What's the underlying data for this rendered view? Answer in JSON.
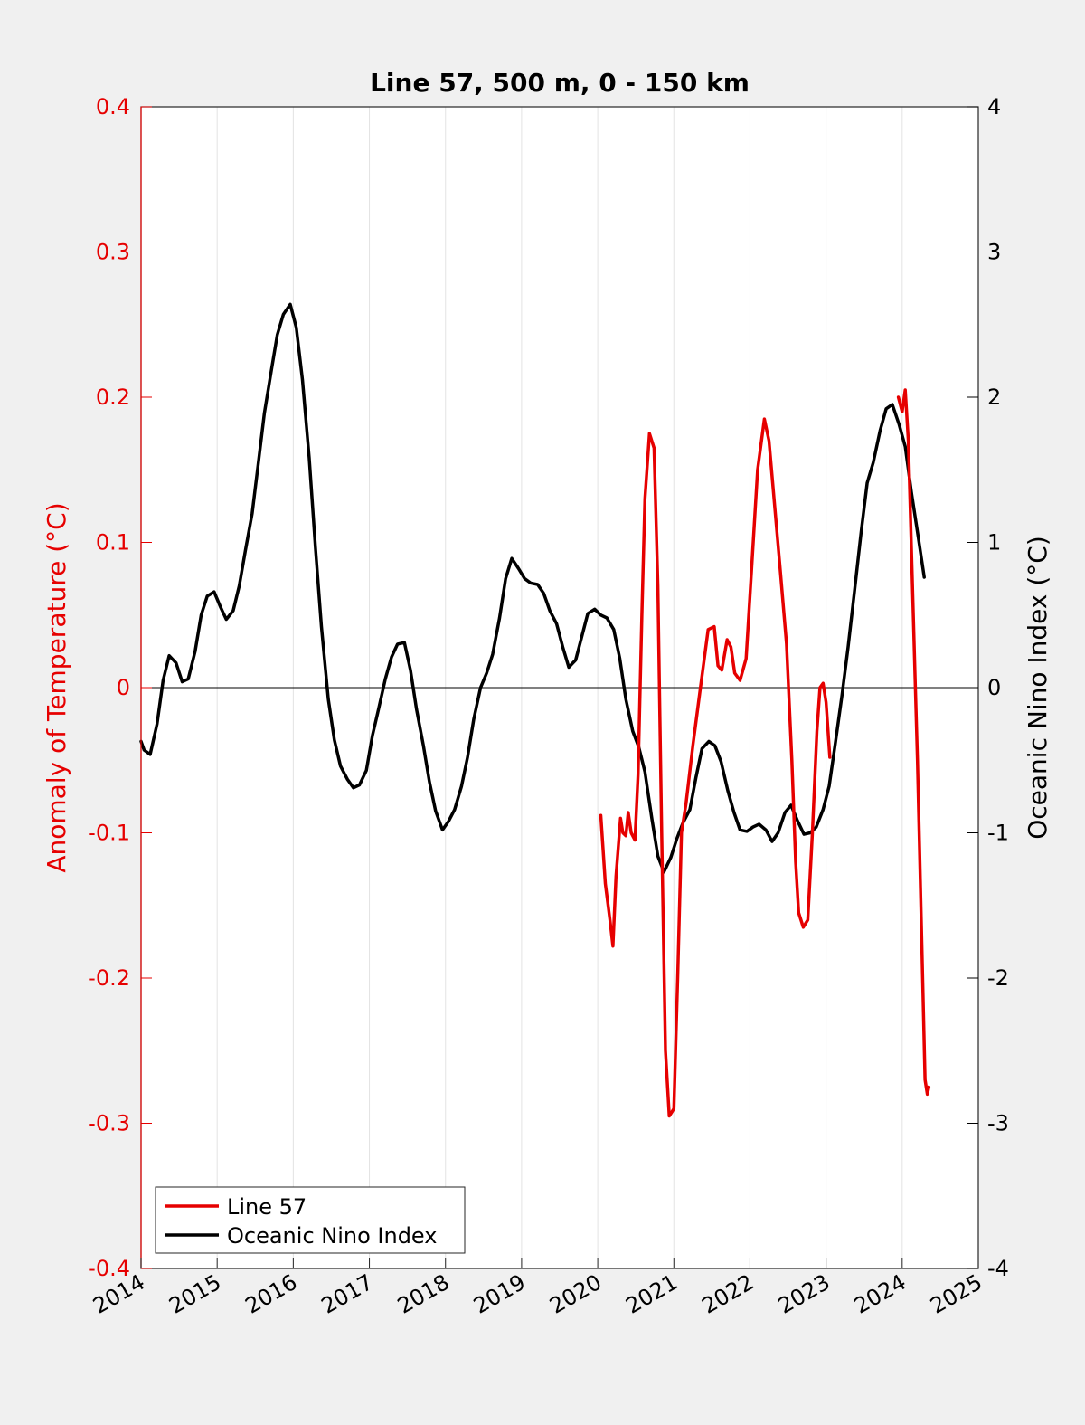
{
  "chart_data": {
    "type": "line",
    "title": "Line 57, 500 m, 0 - 150 km",
    "xlabel": "",
    "ylabel_left": "Anomaly of Temperature (°C)",
    "ylabel_right": "Oceanic Nino Index (°C)",
    "xlim": [
      2014,
      2025
    ],
    "ylim_left": [
      -0.4,
      0.4
    ],
    "ylim_right": [
      -4,
      4
    ],
    "x_ticks": [
      "2014",
      "2015",
      "2016",
      "2017",
      "2018",
      "2019",
      "2020",
      "2021",
      "2022",
      "2023",
      "2024",
      "2025"
    ],
    "y_left_ticks": [
      "-0.4",
      "-0.3",
      "-0.2",
      "-0.1",
      "0",
      "0.1",
      "0.2",
      "0.3",
      "0.4"
    ],
    "y_right_ticks": [
      "-4",
      "-3",
      "-2",
      "-1",
      "0",
      "1",
      "2",
      "3",
      "4"
    ],
    "grid": "vertical",
    "legend_position": "bottom-left",
    "colors": {
      "line57": "#e60000",
      "oni": "#000000",
      "axis_left": "#e60000",
      "axis_right": "#000000"
    },
    "series": [
      {
        "name": "Line 57",
        "axis": "left",
        "x": [
          2020.04,
          2020.1,
          2020.16,
          2020.2,
          2020.24,
          2020.3,
          2020.33,
          2020.37,
          2020.4,
          2020.44,
          2020.49,
          2020.53,
          2020.58,
          2020.62,
          2020.68,
          2020.74,
          2020.79,
          2020.84,
          2020.89,
          2020.94,
          2021.0,
          2021.05,
          2021.1,
          2021.16,
          2021.25,
          2021.35,
          2021.45,
          2021.53,
          2021.58,
          2021.63,
          2021.7,
          2021.75,
          2021.8,
          2021.87,
          2021.95,
          2022.02,
          2022.1,
          2022.19,
          2022.25,
          2022.3,
          2022.4,
          2022.48,
          2022.55,
          2022.6,
          2022.64,
          2022.7,
          2022.76,
          2022.82,
          2022.88,
          2022.92,
          2022.96,
          2023.0,
          2023.05,
          2023.95,
          2024.0,
          2024.04,
          2024.08,
          2024.2,
          2024.3,
          2024.33,
          2024.35
        ],
        "values": [
          -0.088,
          -0.135,
          -0.16,
          -0.178,
          -0.13,
          -0.09,
          -0.1,
          -0.102,
          -0.086,
          -0.1,
          -0.105,
          -0.06,
          0.05,
          0.13,
          0.175,
          0.165,
          0.07,
          -0.1,
          -0.25,
          -0.295,
          -0.29,
          -0.2,
          -0.1,
          -0.08,
          -0.04,
          0.0,
          0.04,
          0.042,
          0.015,
          0.012,
          0.033,
          0.028,
          0.01,
          0.005,
          0.02,
          0.08,
          0.15,
          0.185,
          0.17,
          0.14,
          0.08,
          0.03,
          -0.05,
          -0.12,
          -0.155,
          -0.165,
          -0.16,
          -0.1,
          -0.03,
          0.0,
          0.003,
          -0.01,
          -0.048,
          0.2,
          0.19,
          0.205,
          0.17,
          -0.05,
          -0.27,
          -0.28,
          -0.275
        ]
      },
      {
        "name": "Oceanic Nino Index",
        "axis": "right",
        "x": [
          2014.0,
          2014.04,
          2014.12,
          2014.21,
          2014.29,
          2014.37,
          2014.46,
          2014.54,
          2014.62,
          2014.71,
          2014.79,
          2014.87,
          2014.96,
          2015.04,
          2015.12,
          2015.21,
          2015.29,
          2015.37,
          2015.46,
          2015.54,
          2015.62,
          2015.71,
          2015.79,
          2015.87,
          2015.96,
          2016.04,
          2016.12,
          2016.21,
          2016.29,
          2016.37,
          2016.46,
          2016.54,
          2016.62,
          2016.71,
          2016.79,
          2016.87,
          2016.96,
          2017.04,
          2017.12,
          2017.21,
          2017.29,
          2017.37,
          2017.46,
          2017.54,
          2017.62,
          2017.71,
          2017.79,
          2017.87,
          2017.96,
          2018.04,
          2018.12,
          2018.21,
          2018.29,
          2018.37,
          2018.46,
          2018.54,
          2018.62,
          2018.71,
          2018.79,
          2018.87,
          2018.96,
          2019.04,
          2019.12,
          2019.21,
          2019.29,
          2019.37,
          2019.46,
          2019.54,
          2019.62,
          2019.71,
          2019.79,
          2019.87,
          2019.96,
          2020.04,
          2020.12,
          2020.21,
          2020.29,
          2020.37,
          2020.46,
          2020.54,
          2020.62,
          2020.71,
          2020.79,
          2020.87,
          2020.96,
          2021.04,
          2021.12,
          2021.21,
          2021.29,
          2021.37,
          2021.46,
          2021.54,
          2021.62,
          2021.71,
          2021.79,
          2021.87,
          2021.96,
          2022.04,
          2022.12,
          2022.21,
          2022.29,
          2022.37,
          2022.46,
          2022.54,
          2022.62,
          2022.71,
          2022.79,
          2022.87,
          2022.96,
          2023.04,
          2023.12,
          2023.21,
          2023.29,
          2023.37,
          2023.46,
          2023.54,
          2023.62,
          2023.71,
          2023.79,
          2023.87,
          2023.96,
          2024.04,
          2024.12,
          2024.21,
          2024.29
        ],
        "values": [
          -0.37,
          -0.43,
          -0.46,
          -0.25,
          0.05,
          0.22,
          0.17,
          0.04,
          0.06,
          0.25,
          0.5,
          0.63,
          0.66,
          0.56,
          0.47,
          0.53,
          0.7,
          0.94,
          1.2,
          1.54,
          1.89,
          2.18,
          2.43,
          2.57,
          2.64,
          2.48,
          2.12,
          1.58,
          0.97,
          0.42,
          -0.08,
          -0.36,
          -0.54,
          -0.63,
          -0.69,
          -0.67,
          -0.57,
          -0.33,
          -0.15,
          0.06,
          0.21,
          0.3,
          0.31,
          0.12,
          -0.15,
          -0.4,
          -0.65,
          -0.85,
          -0.98,
          -0.92,
          -0.84,
          -0.68,
          -0.48,
          -0.22,
          0.0,
          0.1,
          0.23,
          0.48,
          0.75,
          0.89,
          0.82,
          0.75,
          0.72,
          0.71,
          0.65,
          0.53,
          0.44,
          0.28,
          0.14,
          0.19,
          0.35,
          0.51,
          0.54,
          0.5,
          0.48,
          0.4,
          0.2,
          -0.08,
          -0.3,
          -0.41,
          -0.58,
          -0.9,
          -1.16,
          -1.27,
          -1.17,
          -1.04,
          -0.93,
          -0.84,
          -0.62,
          -0.42,
          -0.37,
          -0.4,
          -0.51,
          -0.71,
          -0.86,
          -0.98,
          -0.99,
          -0.96,
          -0.94,
          -0.98,
          -1.06,
          -1.0,
          -0.86,
          -0.81,
          -0.91,
          -1.01,
          -1.0,
          -0.96,
          -0.84,
          -0.68,
          -0.39,
          -0.05,
          0.28,
          0.65,
          1.07,
          1.41,
          1.55,
          1.77,
          1.92,
          1.95,
          1.81,
          1.66,
          1.35,
          1.04,
          0.76
        ]
      }
    ]
  }
}
